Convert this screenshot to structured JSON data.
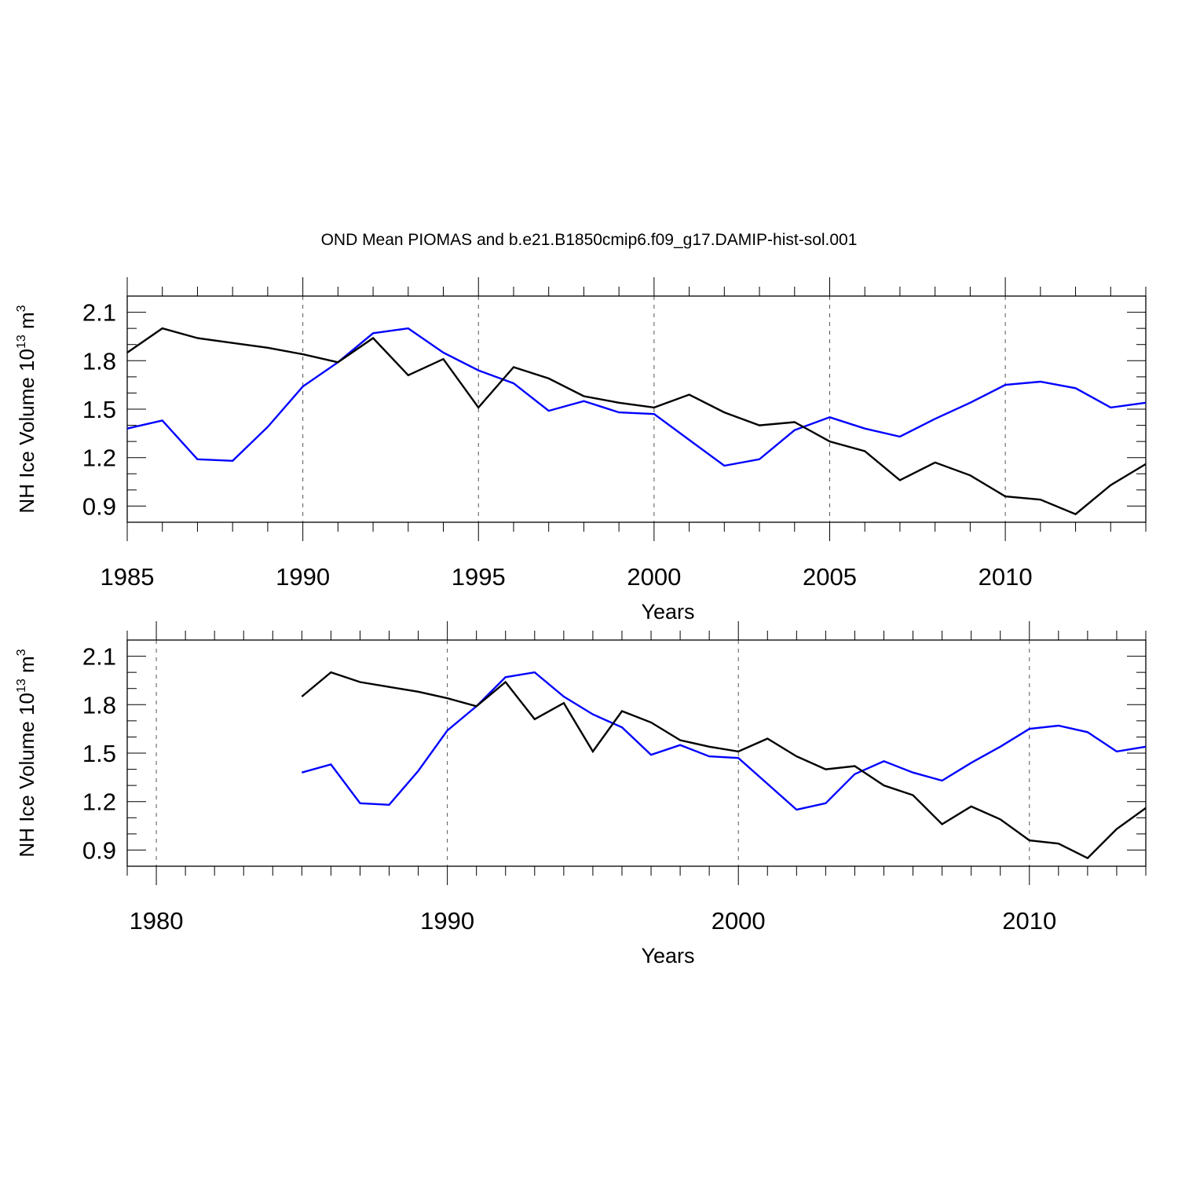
{
  "title": "OND Mean PIOMAS and b.e21.B1850cmip6.f09_g17.DAMIP-hist-sol.001",
  "ylabel_main": "NH Ice Volume 10",
  "ylabel_exp": "13",
  "ylabel_unit": " m",
  "ylabel_unit_exp": "3",
  "colors": {
    "observed": "#000000",
    "model": "#0000ff",
    "axis": "#000000",
    "grid": "#555555"
  },
  "chart_data": [
    {
      "type": "line",
      "panel": "top",
      "xlabel": "Years",
      "ylabel": "NH Ice Volume 10^13 m^3",
      "xlim": [
        1985,
        2014
      ],
      "ylim": [
        0.8,
        2.2
      ],
      "xticks": [
        1985,
        1990,
        1995,
        2000,
        2005,
        2010
      ],
      "xtick_labels": [
        "1985",
        "1990",
        "1995",
        "2000",
        "2005",
        "2010"
      ],
      "yticks": [
        0.9,
        1.2,
        1.5,
        1.8,
        2.1
      ],
      "ytick_labels": [
        "0.9",
        "1.2",
        "1.5",
        "1.8",
        "2.1"
      ],
      "grid_x": [
        1990,
        1995,
        2000,
        2005,
        2010
      ],
      "x": [
        1985,
        1986,
        1987,
        1988,
        1989,
        1990,
        1991,
        1992,
        1993,
        1994,
        1995,
        1996,
        1997,
        1998,
        1999,
        2000,
        2001,
        2002,
        2003,
        2004,
        2005,
        2006,
        2007,
        2008,
        2009,
        2010,
        2011,
        2012,
        2013,
        2014
      ],
      "series": [
        {
          "name": "PIOMAS",
          "color": "#000000",
          "values": [
            1.85,
            2.0,
            1.94,
            1.91,
            1.88,
            1.84,
            1.79,
            1.94,
            1.71,
            1.81,
            1.51,
            1.76,
            1.69,
            1.58,
            1.54,
            1.51,
            1.59,
            1.48,
            1.4,
            1.42,
            1.3,
            1.24,
            1.06,
            1.17,
            1.09,
            0.96,
            0.94,
            0.85,
            1.03,
            1.16
          ]
        },
        {
          "name": "DAMIP-hist-sol.001",
          "color": "#0000ff",
          "values": [
            1.38,
            1.43,
            1.19,
            1.18,
            1.39,
            1.64,
            1.79,
            1.97,
            2.0,
            1.85,
            1.74,
            1.66,
            1.49,
            1.55,
            1.48,
            1.47,
            1.31,
            1.15,
            1.19,
            1.37,
            1.45,
            1.38,
            1.33,
            1.44,
            1.54,
            1.65,
            1.67,
            1.63,
            1.51,
            1.54
          ]
        }
      ]
    },
    {
      "type": "line",
      "panel": "bottom",
      "xlabel": "Years",
      "ylabel": "NH Ice Volume 10^13 m^3",
      "xlim": [
        1979,
        2014
      ],
      "ylim": [
        0.8,
        2.2
      ],
      "xticks": [
        1980,
        1990,
        2000,
        2010
      ],
      "xtick_labels": [
        "1980",
        "1990",
        "2000",
        "2010"
      ],
      "yticks": [
        0.9,
        1.2,
        1.5,
        1.8,
        2.1
      ],
      "ytick_labels": [
        "0.9",
        "1.2",
        "1.5",
        "1.8",
        "2.1"
      ],
      "grid_x": [
        1980,
        1990,
        2000,
        2010
      ],
      "x": [
        1985,
        1986,
        1987,
        1988,
        1989,
        1990,
        1991,
        1992,
        1993,
        1994,
        1995,
        1996,
        1997,
        1998,
        1999,
        2000,
        2001,
        2002,
        2003,
        2004,
        2005,
        2006,
        2007,
        2008,
        2009,
        2010,
        2011,
        2012,
        2013,
        2014
      ],
      "series": [
        {
          "name": "PIOMAS",
          "color": "#000000",
          "values": [
            1.85,
            2.0,
            1.94,
            1.91,
            1.88,
            1.84,
            1.79,
            1.94,
            1.71,
            1.81,
            1.51,
            1.76,
            1.69,
            1.58,
            1.54,
            1.51,
            1.59,
            1.48,
            1.4,
            1.42,
            1.3,
            1.24,
            1.06,
            1.17,
            1.09,
            0.96,
            0.94,
            0.85,
            1.03,
            1.16
          ]
        },
        {
          "name": "DAMIP-hist-sol.001",
          "color": "#0000ff",
          "values": [
            1.38,
            1.43,
            1.19,
            1.18,
            1.39,
            1.64,
            1.79,
            1.97,
            2.0,
            1.85,
            1.74,
            1.66,
            1.49,
            1.55,
            1.48,
            1.47,
            1.31,
            1.15,
            1.19,
            1.37,
            1.45,
            1.38,
            1.33,
            1.44,
            1.54,
            1.65,
            1.67,
            1.63,
            1.51,
            1.54
          ]
        }
      ]
    }
  ]
}
